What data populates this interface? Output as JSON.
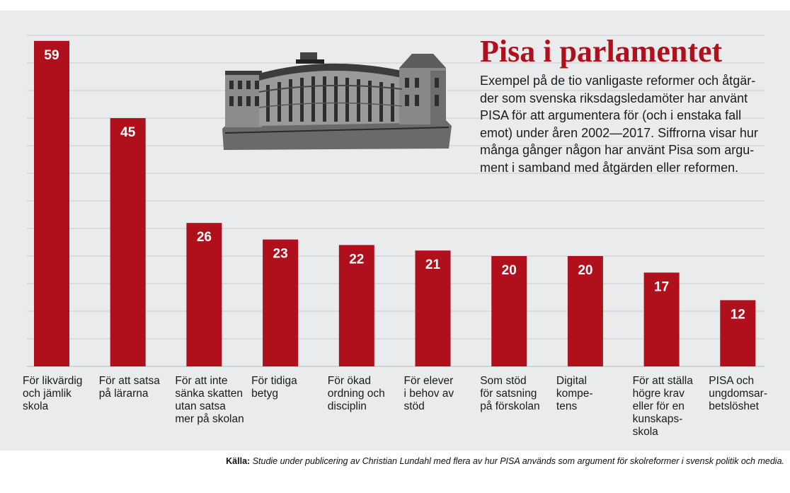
{
  "chart_data": {
    "type": "bar",
    "title": "Pisa i parlamentet",
    "subtitle": "Exempel på de tio vanligaste reformer och åtgär-\nder som svenska riksdagsledamöter har använt\nPISA för att argumentera för (och i enstaka fall\nemot) under åren 2002—2017. Siffrorna visar hur\nmånga gånger någon har använt Pisa som argu-\nment i samband med åtgärden eller reformen.",
    "categories": [
      "För likvärdig\noch jämlik\nskola",
      "För att satsa\npå lärarna",
      "För att inte\nsänka skatten\nutan satsa\nmer på skolan",
      "För tidiga\nbetyg",
      "För ökad\nordning och\ndisciplin",
      "För elever\ni behov av\nstöd",
      "Som stöd\nför satsning\npå förskolan",
      "Digital\nkompe-\ntens",
      "För att ställa\nhögre krav\neller för en\nkunskaps-\nskola",
      "PISA och\nungdomsar-\nbetslöshet"
    ],
    "values": [
      59,
      45,
      26,
      23,
      22,
      21,
      20,
      20,
      17,
      12
    ],
    "ylim": [
      0,
      60
    ],
    "grid": true,
    "bar_color": "#b0101c"
  },
  "source": {
    "label": "Källa:",
    "text": "Studie under publicering av Christian Lundahl med flera av hur PISA används som argument för skolreformer i svensk politik och media."
  }
}
